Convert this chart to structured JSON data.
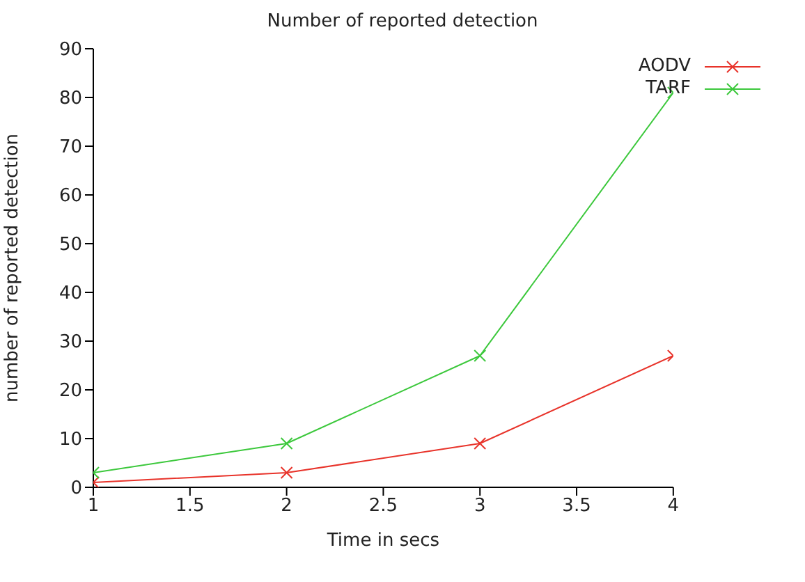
{
  "chart_data": {
    "type": "line",
    "title": "Number of reported detection",
    "xlabel": "Time in secs",
    "ylabel": "number of reported detection",
    "x": [
      1,
      2,
      3,
      4
    ],
    "series": [
      {
        "name": "AODV",
        "color": "#e8332a",
        "values": [
          1,
          3,
          9,
          27
        ],
        "marker": "cross"
      },
      {
        "name": "TARF",
        "color": "#3cc83c",
        "values": [
          3,
          9,
          27,
          81
        ],
        "marker": "cross"
      }
    ],
    "xlim": [
      1,
      4
    ],
    "xticks": [
      1,
      1.5,
      2,
      2.5,
      3,
      3.5,
      4
    ],
    "ylim": [
      0,
      90
    ],
    "yticks": [
      0,
      10,
      20,
      30,
      40,
      50,
      60,
      70,
      80,
      90
    ],
    "grid": false,
    "legend": "top right",
    "line_style": "solid"
  }
}
